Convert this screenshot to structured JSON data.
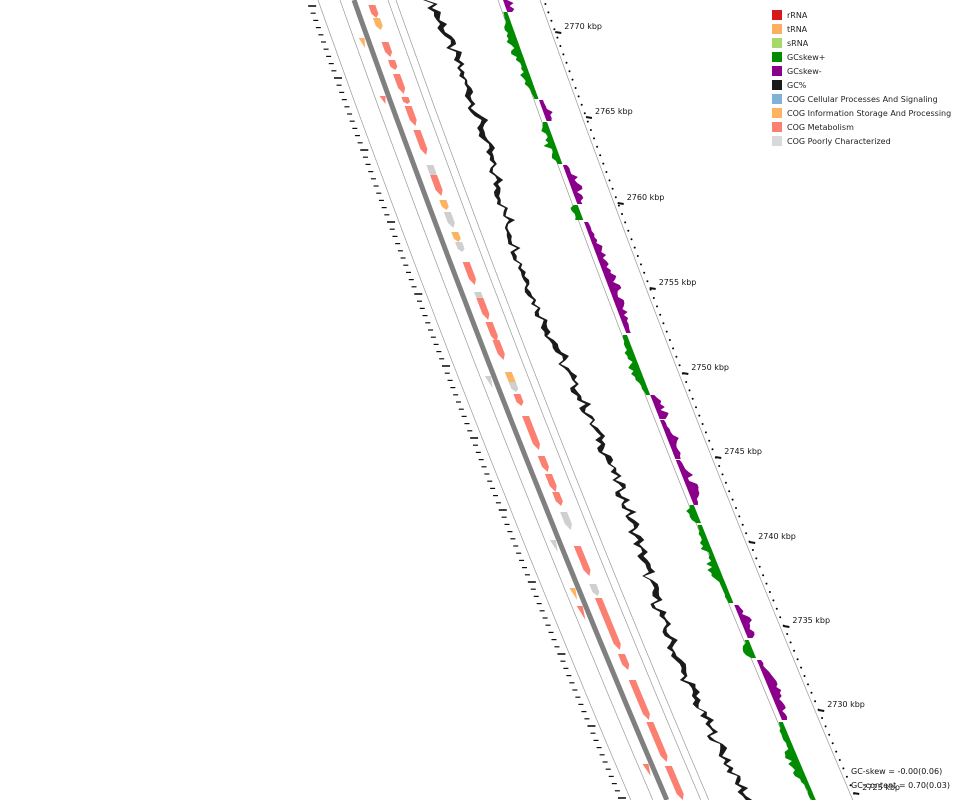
{
  "legend": [
    {
      "label": "rRNA",
      "color": "#d7191c"
    },
    {
      "label": "tRNA",
      "color": "#fdae61"
    },
    {
      "label": "sRNA",
      "color": "#a6d96a"
    },
    {
      "label": "GCskew+",
      "color": "#008b00"
    },
    {
      "label": "GCskew-",
      "color": "#8b008b"
    },
    {
      "label": "GC%",
      "color": "#1a1a1a"
    },
    {
      "label": "COG Cellular Processes And Signaling",
      "color": "#7fb2d5"
    },
    {
      "label": "COG Information Storage And Processing",
      "color": "#fdb462"
    },
    {
      "label": "COG Metabolism",
      "color": "#fb8072"
    },
    {
      "label": "COG Poorly Characterized",
      "color": "#d9d9d9"
    }
  ],
  "stats": {
    "gc_skew": "GC-skew = -0.00(0.06)",
    "gc_content": "GC-content = 0.70(0.03)"
  },
  "ticks": [
    {
      "label": "2770 kbp",
      "kbp": 2770
    },
    {
      "label": "2765 kbp",
      "kbp": 2765
    },
    {
      "label": "2760 kbp",
      "kbp": 2760
    },
    {
      "label": "2755 kbp",
      "kbp": 2755
    },
    {
      "label": "2750 kbp",
      "kbp": 2750
    },
    {
      "label": "2745 kbp",
      "kbp": 2745
    },
    {
      "label": "2740 kbp",
      "kbp": 2740
    },
    {
      "label": "2735 kbp",
      "kbp": 2735
    },
    {
      "label": "2730 kbp",
      "kbp": 2730
    },
    {
      "label": "2725 kbp",
      "kbp": 2725
    }
  ],
  "colors": {
    "backbone": "#808080",
    "track_line": "#9a9a9a",
    "gc_percent": "#1a1a1a",
    "gc_skew_pos": "#008b00",
    "gc_skew_neg": "#8b008b",
    "cog_metabolism": "#fb8072",
    "cog_info": "#fdb462",
    "cog_poor": "#cfcfcf"
  }
}
